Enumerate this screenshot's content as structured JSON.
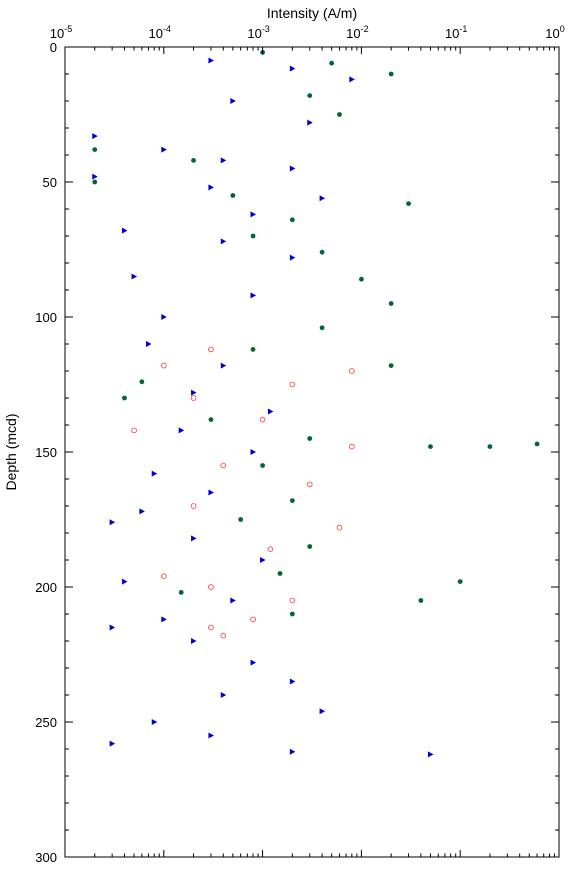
{
  "chart_data": {
    "type": "scatter",
    "title": "",
    "xlabel": "Intensity (A/m)",
    "ylabel": "Depth (mcd)",
    "x_scale": "log",
    "x_axis_position": "top",
    "y_inverted": true,
    "xlim": [
      1e-05,
      1
    ],
    "ylim": [
      0,
      300
    ],
    "x_ticks": [
      {
        "value": 1e-05,
        "base": "10",
        "exp": "-5"
      },
      {
        "value": 0.0001,
        "base": "10",
        "exp": "-4"
      },
      {
        "value": 0.001,
        "base": "10",
        "exp": "-3"
      },
      {
        "value": 0.01,
        "base": "10",
        "exp": "-2"
      },
      {
        "value": 0.1,
        "base": "10",
        "exp": "-1"
      },
      {
        "value": 1,
        "base": "10",
        "exp": "0"
      }
    ],
    "y_ticks": [
      {
        "value": 0,
        "label": "0"
      },
      {
        "value": 50,
        "label": "50"
      },
      {
        "value": 100,
        "label": "100"
      },
      {
        "value": 150,
        "label": "150"
      },
      {
        "value": 200,
        "label": "200"
      },
      {
        "value": 250,
        "label": "250"
      },
      {
        "value": 300,
        "label": "300"
      }
    ],
    "grid": false,
    "legend": "none",
    "series": [
      {
        "marker": "triangle-right",
        "color": "#0000cc",
        "points": [
          [
            0.0003,
            5
          ],
          [
            0.002,
            8
          ],
          [
            0.008,
            12
          ],
          [
            0.0005,
            20
          ],
          [
            0.003,
            28
          ],
          [
            2e-05,
            33
          ],
          [
            0.0001,
            38
          ],
          [
            0.0004,
            42
          ],
          [
            0.002,
            45
          ],
          [
            2e-05,
            48
          ],
          [
            0.0003,
            52
          ],
          [
            0.004,
            56
          ],
          [
            0.0008,
            62
          ],
          [
            4e-05,
            68
          ],
          [
            0.0004,
            72
          ],
          [
            0.002,
            78
          ],
          [
            5e-05,
            85
          ],
          [
            0.0008,
            92
          ],
          [
            0.0001,
            100
          ],
          [
            7e-05,
            110
          ],
          [
            0.0004,
            118
          ],
          [
            0.0002,
            128
          ],
          [
            0.0012,
            135
          ],
          [
            0.00015,
            142
          ],
          [
            0.0008,
            150
          ],
          [
            8e-05,
            158
          ],
          [
            0.0003,
            165
          ],
          [
            6e-05,
            172
          ],
          [
            3e-05,
            176
          ],
          [
            0.0002,
            182
          ],
          [
            0.001,
            190
          ],
          [
            4e-05,
            198
          ],
          [
            0.0005,
            205
          ],
          [
            0.0001,
            212
          ],
          [
            3e-05,
            215
          ],
          [
            0.0002,
            220
          ],
          [
            0.0008,
            228
          ],
          [
            0.002,
            235
          ],
          [
            0.0004,
            240
          ],
          [
            0.004,
            246
          ],
          [
            8e-05,
            250
          ],
          [
            0.0003,
            255
          ],
          [
            3e-05,
            258
          ],
          [
            0.002,
            261
          ],
          [
            0.05,
            262
          ]
        ]
      },
      {
        "marker": "circle-filled",
        "color": "#006633",
        "points": [
          [
            0.001,
            2
          ],
          [
            0.005,
            6
          ],
          [
            0.02,
            10
          ],
          [
            0.003,
            18
          ],
          [
            0.006,
            25
          ],
          [
            2e-05,
            38
          ],
          [
            0.0002,
            42
          ],
          [
            2e-05,
            50
          ],
          [
            0.0005,
            55
          ],
          [
            0.03,
            58
          ],
          [
            0.002,
            64
          ],
          [
            0.0008,
            70
          ],
          [
            0.004,
            76
          ],
          [
            0.01,
            86
          ],
          [
            0.02,
            95
          ],
          [
            0.004,
            104
          ],
          [
            0.0008,
            112
          ],
          [
            0.02,
            118
          ],
          [
            6e-05,
            124
          ],
          [
            4e-05,
            130
          ],
          [
            0.0003,
            138
          ],
          [
            0.003,
            145
          ],
          [
            0.05,
            148
          ],
          [
            0.2,
            148
          ],
          [
            0.6,
            147
          ],
          [
            0.001,
            155
          ],
          [
            0.002,
            168
          ],
          [
            0.0006,
            175
          ],
          [
            0.003,
            185
          ],
          [
            0.0015,
            195
          ],
          [
            0.1,
            198
          ],
          [
            0.00015,
            202
          ],
          [
            0.04,
            205
          ],
          [
            0.002,
            210
          ]
        ]
      },
      {
        "marker": "circle-open",
        "color": "#ff3333",
        "points": [
          [
            0.0003,
            112
          ],
          [
            0.0001,
            118
          ],
          [
            0.008,
            120
          ],
          [
            0.002,
            125
          ],
          [
            0.0002,
            130
          ],
          [
            0.001,
            138
          ],
          [
            5e-05,
            142
          ],
          [
            0.008,
            148
          ],
          [
            0.0004,
            155
          ],
          [
            0.003,
            162
          ],
          [
            0.0002,
            170
          ],
          [
            0.006,
            178
          ],
          [
            0.0012,
            186
          ],
          [
            0.0001,
            196
          ],
          [
            0.0003,
            200
          ],
          [
            0.002,
            205
          ],
          [
            0.0008,
            212
          ],
          [
            0.0003,
            215
          ],
          [
            0.0004,
            218
          ]
        ]
      }
    ]
  }
}
